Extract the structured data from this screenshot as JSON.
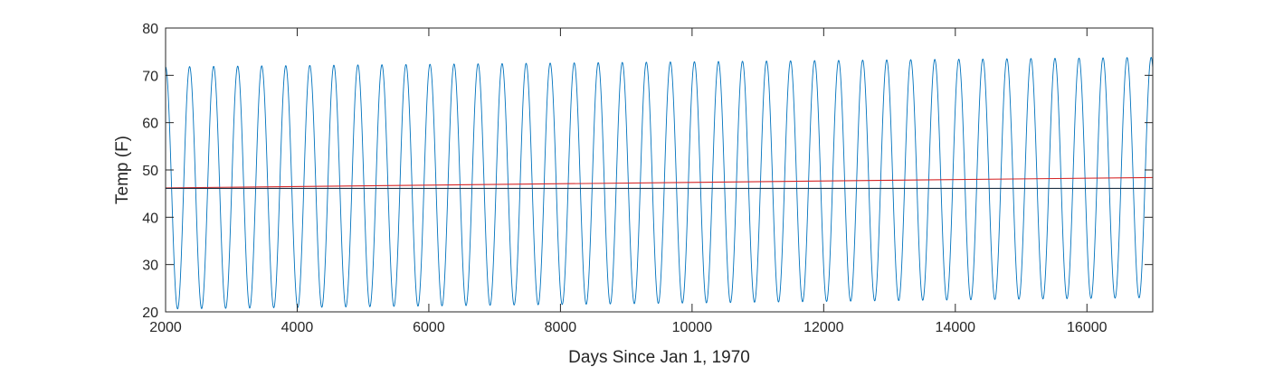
{
  "chart_data": {
    "type": "line",
    "title": "",
    "xlabel": "Days Since Jan 1, 1970",
    "ylabel": "Temp (F)",
    "xlim": [
      2000,
      17000
    ],
    "ylim": [
      20,
      80
    ],
    "x_ticks": [
      2000,
      4000,
      6000,
      8000,
      10000,
      12000,
      14000,
      16000
    ],
    "x_tick_labels": [
      "2000",
      "4000",
      "6000",
      "8000",
      "10000",
      "12000",
      "14000",
      "16000"
    ],
    "y_ticks": [
      20,
      30,
      40,
      50,
      60,
      70,
      80
    ],
    "y_tick_labels": [
      "20",
      "30",
      "40",
      "50",
      "60",
      "70",
      "80"
    ],
    "grid": false,
    "box": true,
    "series": [
      {
        "kind": "seasonal-sinusoid",
        "color": "#0072bd",
        "period_days": 365.25,
        "first_peak_day": 2000,
        "mean_start": 46.2,
        "mean_end": 48.4,
        "amplitude_start": 25.6,
        "amplitude_end": 25.4,
        "x_range": [
          2000,
          17000
        ],
        "sample_points": [
          {
            "x": 2000,
            "y": 71.8
          },
          {
            "x": 2183,
            "y": 21.0
          },
          {
            "x": 4009,
            "y": 20.8
          },
          {
            "x": 8000,
            "y": 71.9
          },
          {
            "x": 12000,
            "y": 72.6
          },
          {
            "x": 16800,
            "y": 73.5
          }
        ]
      },
      {
        "kind": "linear-trend",
        "color": "#d62728",
        "x": [
          2000,
          17000
        ],
        "y": [
          46.2,
          48.4
        ]
      },
      {
        "kind": "constant-baseline",
        "color": "#1f3346",
        "x": [
          2000,
          17000
        ],
        "y": [
          46.1,
          46.1
        ]
      }
    ]
  }
}
